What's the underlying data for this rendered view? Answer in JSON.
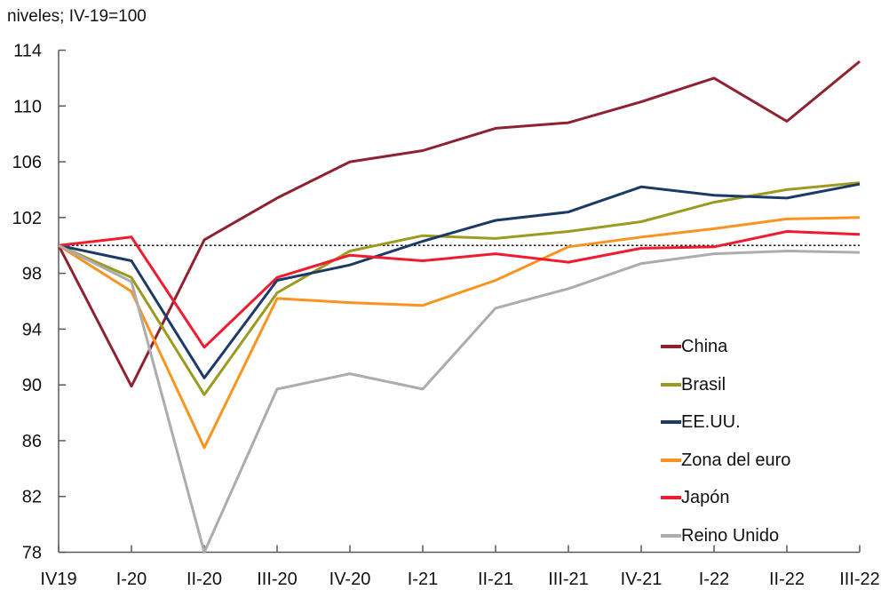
{
  "chart_data": {
    "type": "line",
    "title": "niveles; IV-19=100",
    "xlabel": "",
    "ylabel": "",
    "categories": [
      "IV19",
      "I-20",
      "II-20",
      "III-20",
      "IV-20",
      "I-21",
      "II-21",
      "III-21",
      "IV-21",
      "I-22",
      "II-22",
      "III-22"
    ],
    "series": [
      {
        "name": "China",
        "color": "#8E2231",
        "values": [
          100,
          89.9,
          100.4,
          103.4,
          106.0,
          106.8,
          108.4,
          108.8,
          110.3,
          112.0,
          108.9,
          113.2
        ]
      },
      {
        "name": "Brasil",
        "color": "#9A9B20",
        "values": [
          100,
          97.7,
          89.3,
          96.6,
          99.6,
          100.7,
          100.5,
          101.0,
          101.7,
          103.1,
          104.0,
          104.5
        ]
      },
      {
        "name": "EE.UU.",
        "color": "#1C3A68",
        "values": [
          100,
          98.9,
          90.5,
          97.5,
          98.6,
          100.3,
          101.8,
          102.4,
          104.2,
          103.6,
          103.4,
          104.4
        ]
      },
      {
        "name": "Zona del euro",
        "color": "#FA9320",
        "values": [
          100,
          96.7,
          85.5,
          96.2,
          95.9,
          95.7,
          97.5,
          99.9,
          100.6,
          101.2,
          101.9,
          102.0
        ]
      },
      {
        "name": "Japón",
        "color": "#EE1C2E",
        "values": [
          100,
          100.6,
          92.7,
          97.7,
          99.3,
          98.9,
          99.4,
          98.8,
          99.8,
          99.9,
          101.0,
          100.8
        ]
      },
      {
        "name": "Reino Unido",
        "color": "#ACACAC",
        "values": [
          100,
          97.4,
          78.0,
          89.7,
          90.8,
          89.7,
          95.5,
          96.9,
          98.7,
          99.4,
          99.6,
          99.5
        ]
      }
    ],
    "y_ticks": [
      78,
      82,
      86,
      90,
      94,
      98,
      102,
      106,
      110,
      114
    ],
    "ylim": [
      78,
      114
    ],
    "reference_line": 100,
    "grid": false,
    "legend_position": "right-middle",
    "axis_color": "#595959",
    "reference_line_color": "#000000"
  }
}
